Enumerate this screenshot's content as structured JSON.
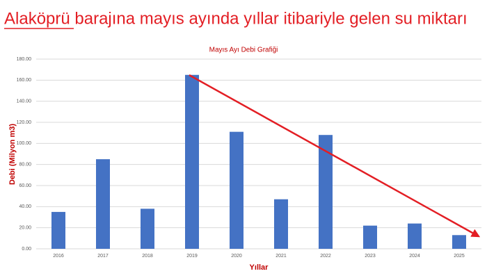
{
  "chart_data": {
    "type": "bar",
    "title": "Alaköprü barajına mayıs ayında yıllar itibariyle gelen su miktarı",
    "subtitle": "Mayıs Ayı Debi Grafiği",
    "x_label": "Yıllar",
    "y_label": "Debi (Milyon m3)",
    "categories": [
      "2016",
      "2017",
      "2018",
      "2019",
      "2020",
      "2021",
      "2022",
      "2023",
      "2024",
      "2025"
    ],
    "values": [
      35,
      85,
      38,
      165,
      111,
      47,
      108,
      22,
      24,
      13
    ],
    "color": "#4472c4",
    "ylim": [
      0,
      180
    ],
    "yticks": [
      {
        "value": 0,
        "label": "0.00"
      },
      {
        "value": 20,
        "label": "20.00"
      },
      {
        "value": 40,
        "label": "40.00"
      },
      {
        "value": 60,
        "label": "60.00"
      },
      {
        "value": 80,
        "label": "80.00"
      },
      {
        "value": 100,
        "label": "100.00"
      },
      {
        "value": 120,
        "label": "120.00"
      },
      {
        "value": 140,
        "label": "140.00"
      },
      {
        "value": 160,
        "label": "160.00"
      },
      {
        "value": 180,
        "label": "180.00"
      }
    ],
    "grid": true
  }
}
